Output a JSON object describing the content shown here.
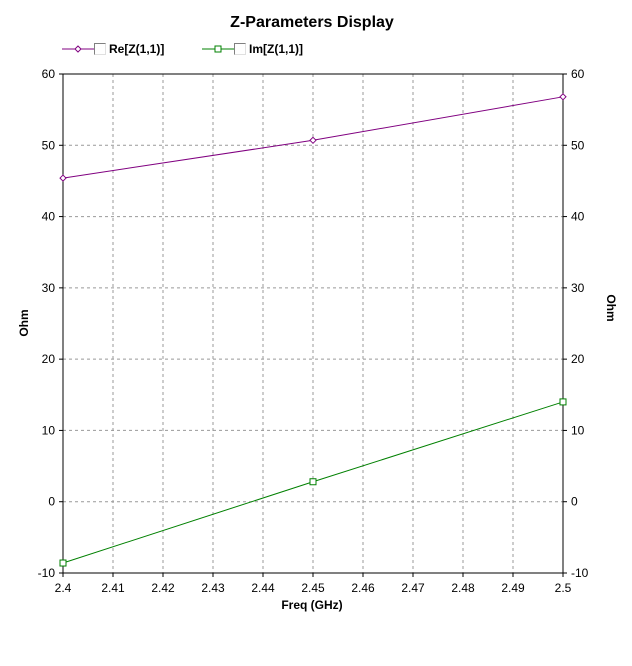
{
  "chart_data": {
    "type": "line",
    "title": "Z-Parameters Display",
    "xlabel": "Freq (GHz)",
    "ylabel": "Ohm",
    "ylabel_right": "Ohm",
    "xlim": [
      2.4,
      2.5
    ],
    "ylim": [
      -10,
      60
    ],
    "xticks": [
      "2.4",
      "2.41",
      "2.42",
      "2.43",
      "2.44",
      "2.45",
      "2.46",
      "2.47",
      "2.48",
      "2.49",
      "2.5"
    ],
    "yticks": [
      "-10",
      "0",
      "10",
      "20",
      "30",
      "40",
      "50",
      "60"
    ],
    "grid": true,
    "legend_position": "top-left",
    "x": [
      2.4,
      2.45,
      2.5
    ],
    "series": [
      {
        "name": "Re[Z(1,1)]",
        "color": "#800080",
        "marker": "diamond",
        "values": [
          45.4,
          50.7,
          56.8
        ]
      },
      {
        "name": "Im[Z(1,1)]",
        "color": "#008000",
        "marker": "square",
        "values": [
          -8.6,
          2.8,
          14.0
        ]
      }
    ]
  }
}
